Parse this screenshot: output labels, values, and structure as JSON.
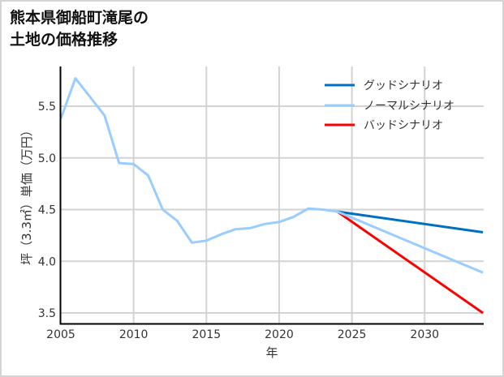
{
  "title": {
    "line1": "熊本県御船町滝尾の",
    "line2": "土地の価格推移"
  },
  "chart_data": {
    "type": "line",
    "title": "熊本県御船町滝尾の土地の価格推移",
    "xlabel": "年",
    "ylabel": "坪（3.3㎡）単価（万円）",
    "xlim": [
      2005,
      2034
    ],
    "ylim": [
      3.4,
      5.87
    ],
    "grid": true,
    "legend_position": "upper right",
    "x_ticks": [
      "2005",
      "2010",
      "2015",
      "2020",
      "2025",
      "2030"
    ],
    "y_ticks": [
      "3.5",
      "4.0",
      "4.5",
      "5.0",
      "5.5"
    ],
    "legend": [
      {
        "name": "グッドシナリオ",
        "color": "#0070c0"
      },
      {
        "name": "ノーマルシナリオ",
        "color": "#99ccff"
      },
      {
        "name": "バッドシナリオ",
        "color": "#ff0000"
      }
    ],
    "series": [
      {
        "name": "ノーマルシナリオ",
        "color": "#99ccff",
        "x": [
          2005,
          2006,
          2007,
          2008,
          2009,
          2010,
          2011,
          2012,
          2013,
          2014,
          2015,
          2016,
          2017,
          2018,
          2019,
          2020,
          2021,
          2022,
          2023,
          2024,
          2034
        ],
        "values": [
          5.38,
          5.77,
          5.59,
          5.41,
          4.95,
          4.94,
          4.83,
          4.5,
          4.39,
          4.18,
          4.2,
          4.26,
          4.31,
          4.32,
          4.36,
          4.38,
          4.43,
          4.51,
          4.5,
          4.48,
          3.89
        ]
      },
      {
        "name": "グッドシナリオ",
        "color": "#0070c0",
        "x": [
          2024,
          2034
        ],
        "values": [
          4.48,
          4.28
        ]
      },
      {
        "name": "バッドシナリオ",
        "color": "#ff0000",
        "x": [
          2024,
          2034
        ],
        "values": [
          4.48,
          3.5
        ]
      }
    ]
  }
}
